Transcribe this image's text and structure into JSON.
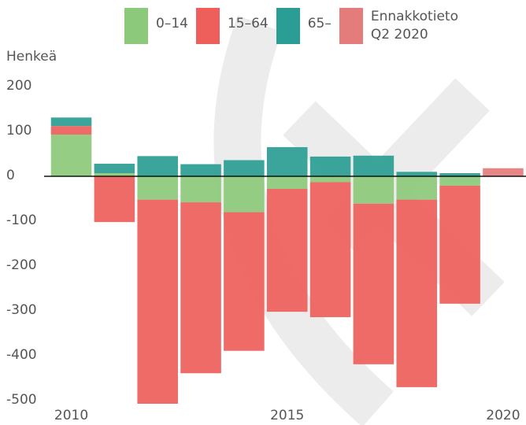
{
  "chart_data": {
    "type": "bar",
    "stacked": true,
    "y_label": "Henkeä",
    "x": [
      2010,
      2011,
      2012,
      2013,
      2014,
      2015,
      2016,
      2017,
      2018,
      2019,
      2020
    ],
    "series": [
      {
        "name": "0–14",
        "color": "#8cc97a",
        "values": [
          93,
          7,
          -52,
          -58,
          -80,
          -28,
          -13,
          -61,
          -52,
          -21,
          null
        ]
      },
      {
        "name": "15–64",
        "color": "#ee5e5a",
        "values": [
          19,
          -102,
          -455,
          -381,
          -309,
          -274,
          -301,
          -358,
          -418,
          -263,
          null
        ]
      },
      {
        "name": "65–",
        "color": "#2a9d94",
        "values": [
          19,
          21,
          45,
          27,
          36,
          65,
          44,
          46,
          10,
          7,
          null
        ]
      },
      {
        "name": "Ennakkotieto Q2 2020",
        "color": "#e57c7c",
        "values": [
          null,
          null,
          null,
          null,
          null,
          null,
          null,
          null,
          null,
          null,
          18
        ]
      }
    ],
    "xlim": [
      2009.48,
      2020.53
    ],
    "xticks": [
      2010,
      2015,
      2020
    ],
    "ylim": [
      -500,
      200
    ],
    "yticks": [
      -500,
      -400,
      -300,
      -200,
      -100,
      0,
      100,
      200
    ],
    "zero_line": true
  }
}
